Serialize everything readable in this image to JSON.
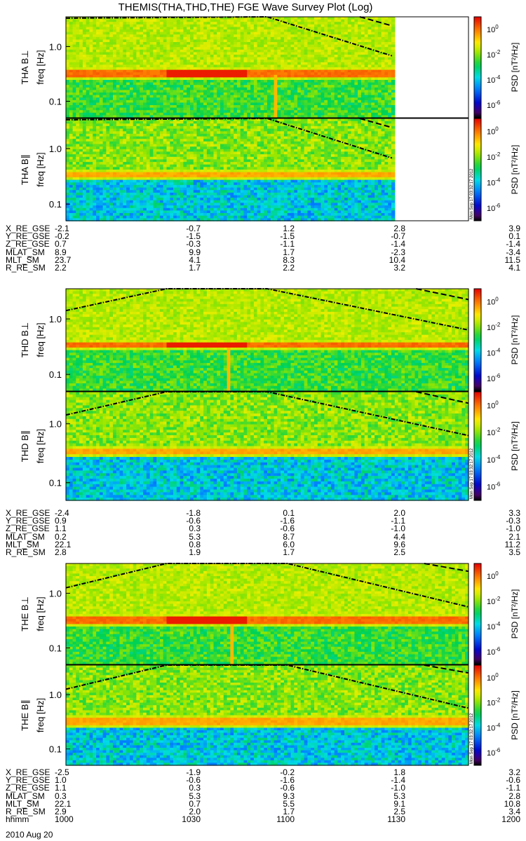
{
  "chart_data": {
    "type": "heatmap",
    "title": "THEMIS(THA,THD,THE) FGE Wave Survey Plot (Log)",
    "date": "2010 Aug 20",
    "time_ticks": [
      "1000",
      "1030",
      "1100",
      "1130",
      "1200"
    ],
    "ylabel_units": "freq [Hz]",
    "y_ticks": [
      "1.0",
      "0.1"
    ],
    "y_tick_values": [
      1.0,
      0.1
    ],
    "yscale": "log",
    "ylim": [
      0.05,
      3.5
    ],
    "colorbar": {
      "label": "PSD [nT²/Hz]",
      "ticks": [
        0,
        -2,
        -4,
        -6
      ],
      "tick_labels": [
        "10",
        "10",
        "10",
        "10"
      ],
      "tick_exponents": [
        "0",
        "-2",
        "-4",
        "-6"
      ],
      "range_log10": [
        -7,
        1
      ]
    },
    "stamp": "Mon Sep 17 03:32:17 2012",
    "panels": [
      {
        "label": "THA B⊥",
        "probe": "THA",
        "component": "perp",
        "data_end_fraction": 0.81,
        "band_hz": 0.32,
        "band_strength": 0.9,
        "spike_fraction": 0.52
      },
      {
        "label": "THA B∥",
        "probe": "THA",
        "component": "par",
        "data_end_fraction": 0.81,
        "band_hz": 0.34,
        "band_strength": 0.55,
        "spike_fraction": null
      },
      {
        "label": "THD B⊥",
        "probe": "THD",
        "component": "perp",
        "data_end_fraction": 1.0,
        "band_hz": 0.33,
        "band_strength": 0.9,
        "spike_fraction": 0.4
      },
      {
        "label": "THD B∥",
        "probe": "THD",
        "component": "par",
        "data_end_fraction": 1.0,
        "band_hz": 0.33,
        "band_strength": 0.55,
        "spike_fraction": null
      },
      {
        "label": "THE B⊥",
        "probe": "THE",
        "component": "perp",
        "data_end_fraction": 1.0,
        "band_hz": 0.32,
        "band_strength": 0.9,
        "spike_fraction": 0.41
      },
      {
        "label": "THE B∥",
        "probe": "THE",
        "component": "par",
        "data_end_fraction": 1.0,
        "band_hz": 0.32,
        "band_strength": 0.55,
        "spike_fraction": null
      }
    ],
    "ephemeris": [
      {
        "rows": [
          {
            "name": "X_RE_GSE",
            "values": [
              "-2.1",
              "-0.7",
              "1.2",
              "2.8",
              "3.9"
            ]
          },
          {
            "name": "Y_RE_GSE",
            "values": [
              "-0.2",
              "-1.5",
              "-1.5",
              "-0.7",
              "0.1"
            ]
          },
          {
            "name": "Z_RE_GSE",
            "values": [
              "0.7",
              "-0.3",
              "-1.1",
              "-1.4",
              "-1.4"
            ]
          },
          {
            "name": "MLAT_SM",
            "values": [
              "8.9",
              "9.9",
              "1.7",
              "-2.3",
              "-3.4"
            ]
          },
          {
            "name": "MLT_SM",
            "values": [
              "23.7",
              "4.1",
              "8.3",
              "10.4",
              "11.5"
            ]
          },
          {
            "name": "R_RE_SM",
            "values": [
              "2.2",
              "1.7",
              "2.2",
              "3.2",
              "4.1"
            ]
          }
        ]
      },
      {
        "rows": [
          {
            "name": "X_RE_GSE",
            "values": [
              "-2.4",
              "-1.8",
              "0.1",
              "2.0",
              "3.3"
            ]
          },
          {
            "name": "Y_RE_GSE",
            "values": [
              "0.9",
              "-0.6",
              "-1.6",
              "-1.1",
              "-0.3"
            ]
          },
          {
            "name": "Z_RE_GSE",
            "values": [
              "1.1",
              "0.3",
              "-0.6",
              "-1.0",
              "-1.0"
            ]
          },
          {
            "name": "MLAT_SM",
            "values": [
              "0.2",
              "5.3",
              "8.7",
              "4.4",
              "2.1"
            ]
          },
          {
            "name": "MLT_SM",
            "values": [
              "22.1",
              "0.8",
              "6.0",
              "9.6",
              "11.2"
            ]
          },
          {
            "name": "R_RE_SM",
            "values": [
              "2.8",
              "1.9",
              "1.7",
              "2.5",
              "3.5"
            ]
          }
        ]
      },
      {
        "rows": [
          {
            "name": "X_RE_GSE",
            "values": [
              "-2.5",
              "-1.9",
              "-0.2",
              "1.8",
              "3.2"
            ]
          },
          {
            "name": "Y_RE_GSE",
            "values": [
              "1.0",
              "-0.6",
              "-1.6",
              "-1.4",
              "-0.6"
            ]
          },
          {
            "name": "Z_RE_GSE",
            "values": [
              "1.1",
              "0.3",
              "-0.6",
              "-1.0",
              "-1.1"
            ]
          },
          {
            "name": "MLAT_SM",
            "values": [
              "0.3",
              "5.3",
              "9.3",
              "5.3",
              "2.8"
            ]
          },
          {
            "name": "MLT_SM",
            "values": [
              "22.1",
              "0.7",
              "5.5",
              "9.1",
              "10.8"
            ]
          },
          {
            "name": "R_RE_SM",
            "values": [
              "2.9",
              "2.0",
              "1.7",
              "2.5",
              "3.4"
            ]
          },
          {
            "name": "hhmm",
            "values": [
              "1000",
              "1030",
              "1100",
              "1130",
              "1200"
            ]
          }
        ]
      }
    ],
    "cyclotron_curves": [
      {
        "panel_group": "THA",
        "curves": [
          {
            "style": "dashdot",
            "points_fraction_logf": [
              [
                0.0,
                0.52
              ],
              [
                0.5,
                0.56
              ],
              [
                0.81,
                -0.17
              ]
            ]
          },
          {
            "style": "dashed",
            "points_fraction_logf": [
              [
                0.73,
                0.55
              ],
              [
                0.81,
                0.38
              ]
            ]
          }
        ]
      },
      {
        "panel_group": "THD",
        "curves": [
          {
            "style": "dashdot",
            "points_fraction_logf": [
              [
                0.0,
                0.15
              ],
              [
                0.25,
                0.56
              ],
              [
                0.5,
                0.56
              ],
              [
                1.0,
                -0.2
              ]
            ]
          },
          {
            "style": "dashed",
            "points_fraction_logf": [
              [
                0.87,
                0.56
              ],
              [
                1.0,
                0.35
              ]
            ]
          }
        ]
      },
      {
        "panel_group": "THE",
        "curves": [
          {
            "style": "dashdot",
            "points_fraction_logf": [
              [
                0.0,
                0.1
              ],
              [
                0.25,
                0.56
              ],
              [
                0.55,
                0.56
              ],
              [
                1.0,
                -0.25
              ]
            ]
          },
          {
            "style": "dashed",
            "points_fraction_logf": [
              [
                0.89,
                0.56
              ],
              [
                1.0,
                0.4
              ]
            ]
          }
        ]
      }
    ]
  }
}
